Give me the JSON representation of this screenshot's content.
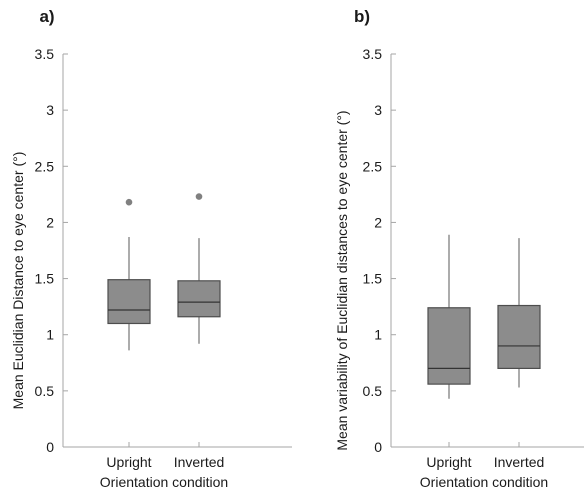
{
  "chart_data": [
    {
      "type": "box",
      "panel_label": "a)",
      "ylabel": "Mean Euclidian Distance to eye center (°)",
      "xlabel": "Orientation condition",
      "categories": [
        "Upright",
        "Inverted"
      ],
      "ylim": [
        0,
        3.5
      ],
      "yticks": [
        "0",
        "0.5",
        "1",
        "1.5",
        "2",
        "2.5",
        "3",
        "3.5"
      ],
      "boxes": [
        {
          "whisker_low": 0.86,
          "q1": 1.1,
          "median": 1.22,
          "q3": 1.49,
          "whisker_high": 1.87,
          "outliers": [
            2.18
          ]
        },
        {
          "whisker_low": 0.92,
          "q1": 1.16,
          "median": 1.29,
          "q3": 1.48,
          "whisker_high": 1.86,
          "outliers": [
            2.23
          ]
        }
      ]
    },
    {
      "type": "box",
      "panel_label": "b)",
      "ylabel": "Mean variability of Euclidian distances to eye center (°)",
      "xlabel": "Orientation condition",
      "categories": [
        "Upright",
        "Inverted"
      ],
      "ylim": [
        0,
        3.5
      ],
      "yticks": [
        "0",
        "0.5",
        "1",
        "1.5",
        "2",
        "2.5",
        "3",
        "3.5"
      ],
      "boxes": [
        {
          "whisker_low": 0.43,
          "q1": 0.56,
          "median": 0.7,
          "q3": 1.24,
          "whisker_high": 1.89,
          "outliers": []
        },
        {
          "whisker_low": 0.53,
          "q1": 0.7,
          "median": 0.9,
          "q3": 1.26,
          "whisker_high": 1.86,
          "outliers": []
        }
      ]
    }
  ],
  "colors": {
    "box_fill": "#8c8c8c",
    "box_edge": "#4d4d4d",
    "median": "#333333",
    "whisker": "#595959",
    "outlier": "#808080",
    "axis": "#a6a6a6"
  }
}
